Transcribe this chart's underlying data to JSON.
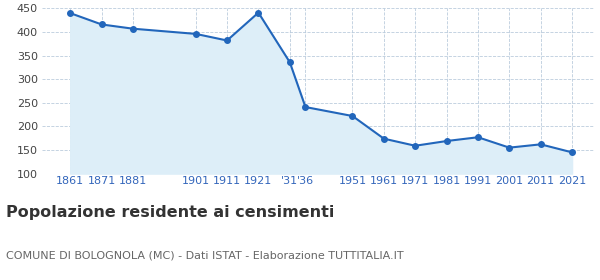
{
  "years": [
    1861,
    1871,
    1881,
    1901,
    1911,
    1921,
    1931,
    1936,
    1951,
    1961,
    1971,
    1981,
    1991,
    2001,
    2011,
    2021
  ],
  "population": [
    440,
    416,
    407,
    396,
    382,
    441,
    336,
    241,
    222,
    174,
    159,
    169,
    177,
    155,
    162,
    145
  ],
  "line_color": "#2266bb",
  "fill_color": "#ddeef8",
  "marker": "o",
  "marker_size": 4,
  "ylim": [
    100,
    450
  ],
  "yticks": [
    100,
    150,
    200,
    250,
    300,
    350,
    400,
    450
  ],
  "xlim_left": 1852,
  "xlim_right": 2028,
  "x_tick_positions": [
    1861,
    1871,
    1881,
    1901,
    1911,
    1921,
    1931,
    1936,
    1951,
    1961,
    1971,
    1981,
    1991,
    2001,
    2011,
    2021
  ],
  "x_tick_labels": [
    "1861",
    "1871",
    "1881",
    "1901",
    "1911",
    "1921",
    "'31",
    "'36",
    "1951",
    "1961",
    "1971",
    "1981",
    "1991",
    "2001",
    "2011",
    "2021"
  ],
  "title": "Popolazione residente ai censimenti",
  "subtitle": "COMUNE DI BOLOGNOLA (MC) - Dati ISTAT - Elaborazione TUTTITALIA.IT",
  "title_fontsize": 11.5,
  "subtitle_fontsize": 8,
  "tick_label_color": "#3366bb",
  "grid_color": "#bbccdd",
  "background_color": "#ffffff",
  "tick_fontsize": 8
}
